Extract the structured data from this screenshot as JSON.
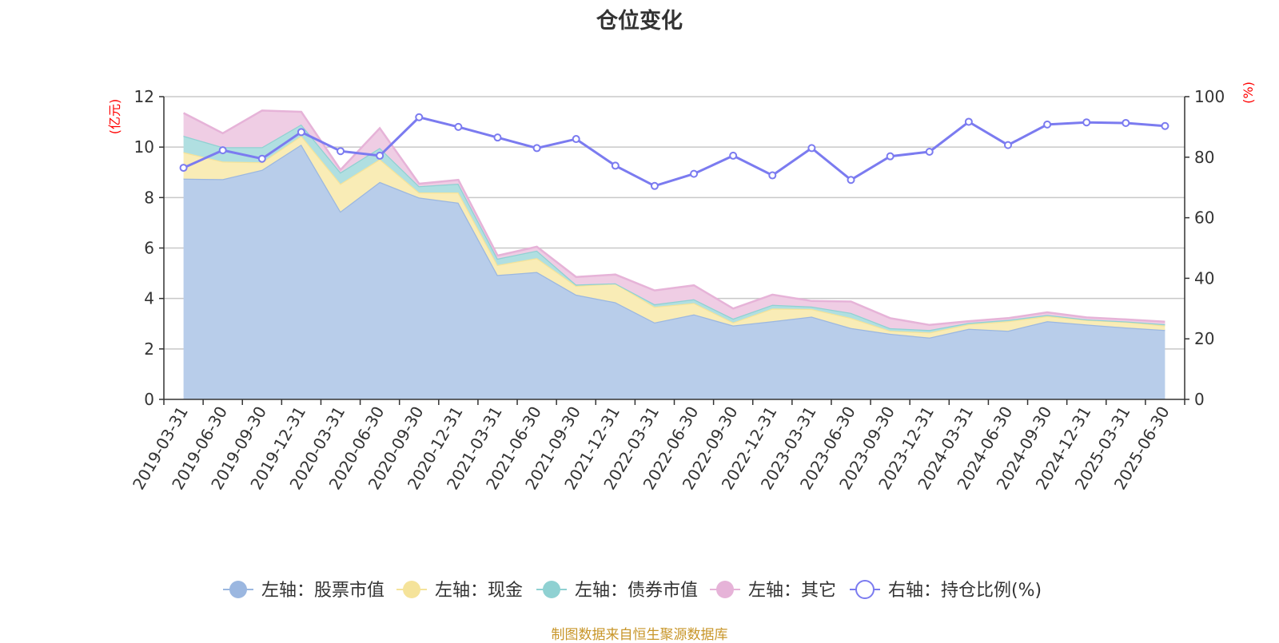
{
  "chart_data": {
    "type": "area",
    "title": "仓位变化",
    "left_axis_unit": "(亿元)",
    "right_axis_unit": "(%)",
    "left_ylim": [
      0,
      12
    ],
    "left_ticks": [
      0,
      2,
      4,
      6,
      8,
      10,
      12
    ],
    "right_ylim": [
      0,
      100
    ],
    "right_ticks": [
      0,
      20,
      40,
      60,
      80,
      100
    ],
    "grid": true,
    "legend_position": "bottom",
    "categories": [
      "2019-03-31",
      "2019-06-30",
      "2019-09-30",
      "2019-12-31",
      "2020-03-31",
      "2020-06-30",
      "2020-09-30",
      "2020-12-31",
      "2021-03-31",
      "2021-06-30",
      "2021-09-30",
      "2021-12-31",
      "2022-03-31",
      "2022-06-30",
      "2022-09-30",
      "2022-12-31",
      "2023-03-31",
      "2023-06-30",
      "2023-09-30",
      "2023-12-31",
      "2024-03-31",
      "2024-06-30",
      "2024-09-30",
      "2024-12-31",
      "2025-03-31",
      "2025-06-30"
    ],
    "stacked_series": [
      {
        "name": "左轴：股票市值",
        "axis": "left",
        "color": "#9bb7e0",
        "fill": "#b8cdea",
        "values": [
          8.75,
          8.73,
          9.1,
          10.1,
          7.45,
          8.62,
          8.0,
          7.8,
          4.93,
          5.05,
          4.15,
          3.85,
          3.05,
          3.37,
          2.93,
          3.1,
          3.28,
          2.83,
          2.6,
          2.45,
          2.8,
          2.72,
          3.1,
          2.97,
          2.85,
          2.75
        ]
      },
      {
        "name": "左轴：现金",
        "axis": "left",
        "color": "#f5e39a",
        "fill": "#f9ecb6",
        "values": [
          1.05,
          0.7,
          0.3,
          0.35,
          1.1,
          0.9,
          0.2,
          0.4,
          0.4,
          0.55,
          0.35,
          0.75,
          0.62,
          0.45,
          0.12,
          0.5,
          0.3,
          0.4,
          0.12,
          0.2,
          0.18,
          0.38,
          0.2,
          0.18,
          0.22,
          0.18
        ]
      },
      {
        "name": "左轴：债券市值",
        "axis": "left",
        "color": "#8fd1d2",
        "fill": "#b0dfe1",
        "values": [
          0.65,
          0.57,
          0.6,
          0.45,
          0.45,
          0.45,
          0.25,
          0.35,
          0.25,
          0.3,
          0.05,
          0.0,
          0.1,
          0.15,
          0.15,
          0.15,
          0.1,
          0.2,
          0.1,
          0.1,
          0.05,
          0.05,
          0.05,
          0.02,
          0.02,
          0.05
        ]
      },
      {
        "name": "左轴：其它",
        "axis": "left",
        "color": "#e6b3d8",
        "fill": "#efcde4",
        "values": [
          0.9,
          0.55,
          1.45,
          0.5,
          0.1,
          0.78,
          0.1,
          0.15,
          0.12,
          0.15,
          0.3,
          0.35,
          0.55,
          0.55,
          0.4,
          0.4,
          0.22,
          0.45,
          0.4,
          0.2,
          0.07,
          0.07,
          0.1,
          0.08,
          0.08,
          0.1
        ]
      }
    ],
    "line_series": {
      "name": "右轴：持仓比例(%)",
      "axis": "right",
      "color": "#7b7bf0",
      "values": [
        76.5,
        82.3,
        79.5,
        88.3,
        82.0,
        80.5,
        93.2,
        90.0,
        86.5,
        83.0,
        86.0,
        77.2,
        70.5,
        74.5,
        80.5,
        74.0,
        83.0,
        72.5,
        80.3,
        81.8,
        91.7,
        84.0,
        90.8,
        91.5,
        91.3,
        90.3
      ]
    }
  },
  "source_note": "制图数据来自恒生聚源数据库"
}
